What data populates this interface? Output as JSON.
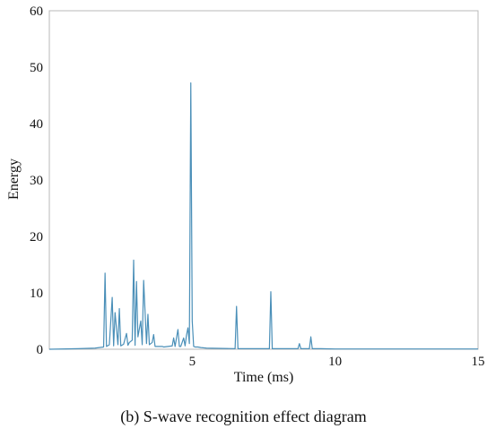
{
  "chart_data": {
    "type": "line",
    "title": "",
    "xlabel": "Time (ms)",
    "ylabel": "Energy",
    "xlim": [
      0,
      15
    ],
    "ylim": [
      0,
      60
    ],
    "x_ticks": [
      5,
      10,
      15
    ],
    "y_ticks": [
      0,
      10,
      20,
      30,
      40,
      50,
      60
    ],
    "grid": false,
    "line_color": "#4a8fb8",
    "series": [
      {
        "x": [
          0.0,
          1.0,
          1.6,
          1.9,
          1.95,
          2.0,
          2.1,
          2.2,
          2.25,
          2.3,
          2.4,
          2.45,
          2.5,
          2.6,
          2.7,
          2.75,
          2.8,
          2.9,
          2.95,
          3.0,
          3.05,
          3.1,
          3.2,
          3.25,
          3.3,
          3.4,
          3.45,
          3.5,
          3.6,
          3.65,
          3.7,
          3.8,
          3.9,
          3.95,
          4.0,
          4.3,
          4.35,
          4.4,
          4.5,
          4.55,
          4.6,
          4.7,
          4.75,
          4.8,
          4.85,
          4.9,
          4.95,
          5.0,
          5.05,
          5.1,
          5.2,
          5.3,
          5.5,
          6.5,
          6.55,
          6.6,
          7.7,
          7.75,
          7.8,
          8.7,
          8.75,
          8.8,
          9.1,
          9.15,
          9.2,
          9.5,
          10.0,
          15.0
        ],
        "y": [
          0,
          0.1,
          0.2,
          0.4,
          13.5,
          0.5,
          0.8,
          9.2,
          0.6,
          6.5,
          0.8,
          7.2,
          0.6,
          0.9,
          2.8,
          0.7,
          1.2,
          1.6,
          15.8,
          0.7,
          12.0,
          2.2,
          5.0,
          0.8,
          12.2,
          1.0,
          6.2,
          0.8,
          1.2,
          2.6,
          0.5,
          0.5,
          0.5,
          0.5,
          0.4,
          0.6,
          2.0,
          0.5,
          3.5,
          0.5,
          0.5,
          2.0,
          0.6,
          2.5,
          3.8,
          1.0,
          47.2,
          5.0,
          0.5,
          0.4,
          0.4,
          0.3,
          0.2,
          0.1,
          7.6,
          0.1,
          0.1,
          10.2,
          0.1,
          0.1,
          1.0,
          0.1,
          0.1,
          2.2,
          0.1,
          0.1,
          0.05,
          0.05
        ]
      }
    ]
  },
  "caption": "(b)  S-wave recognition effect diagram"
}
